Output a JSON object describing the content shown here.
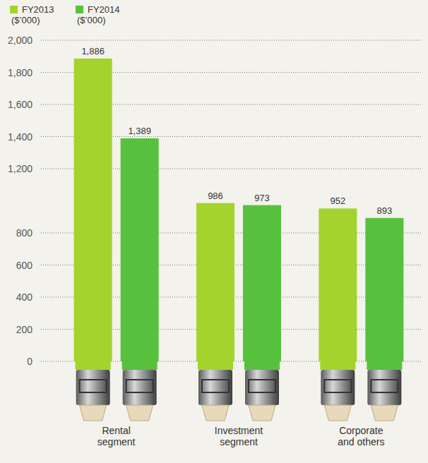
{
  "chart_data": {
    "type": "bar",
    "categories": [
      "Rental segment",
      "Investment segment",
      "Corporate and others"
    ],
    "series": [
      {
        "name": "FY2013 ($’000)",
        "color": "#a3d32c",
        "values": [
          1886,
          986,
          952
        ],
        "value_labels": [
          "1,886",
          "986",
          "952"
        ]
      },
      {
        "name": "FY2014 ($’000)",
        "color": "#57c13e",
        "values": [
          1389,
          973,
          893
        ],
        "value_labels": [
          "1,389",
          "973",
          "893"
        ]
      }
    ],
    "ylim": [
      0,
      2000
    ],
    "yticks": [
      0,
      200,
      400,
      600,
      800,
      {
        "value": 1200,
        "label": "1,200"
      },
      {
        "value": 1400,
        "label": "1,400"
      },
      {
        "value": 1600,
        "label": "1,600"
      },
      {
        "value": 1800,
        "label": "1,800"
      },
      {
        "value": 2000,
        "label": "2,000"
      }
    ],
    "grid": true,
    "data_labels": true,
    "legend": "top-left"
  }
}
